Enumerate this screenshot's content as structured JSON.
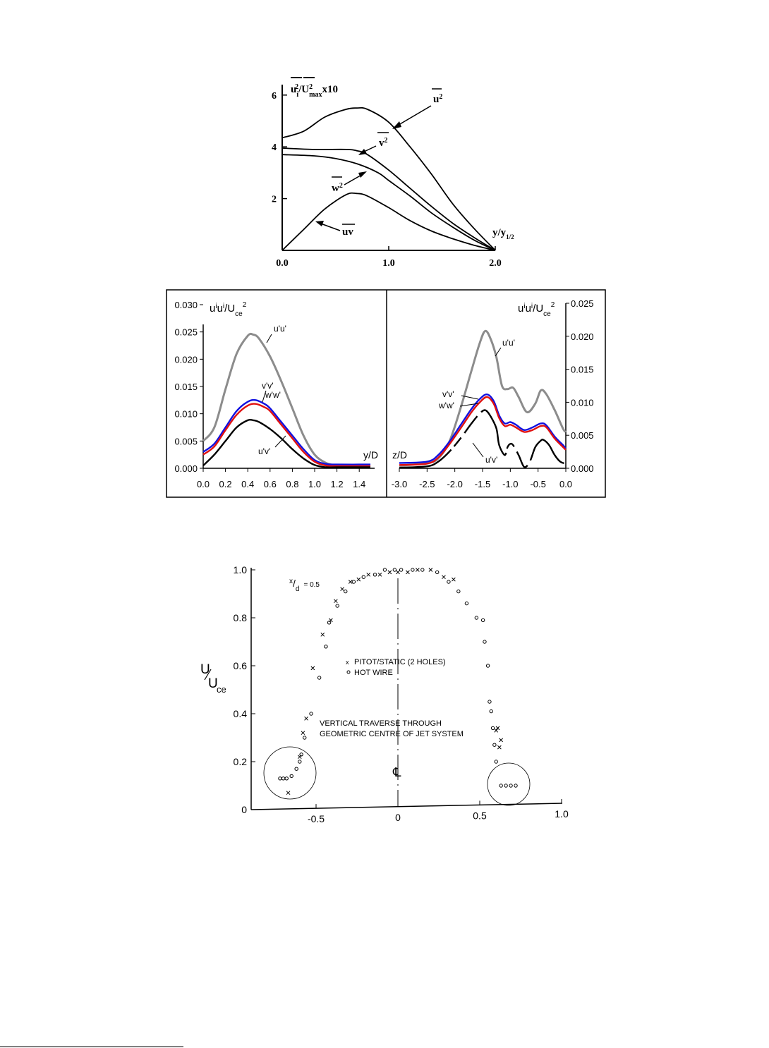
{
  "chart_data": [
    {
      "type": "line",
      "ylabel": "u_i²/U²_max x10",
      "ylabel_parts": {
        "main": "u",
        "sub1": "i",
        "sup1": "2",
        "mid": "/U",
        "sup2": "2",
        "sub2": "max",
        "tail": "x10"
      },
      "xlabel": "y/y½",
      "xlabel_parts": {
        "main": "y/y",
        "sub": "1/2"
      },
      "xlim": [
        0.0,
        2.0
      ],
      "ylim": [
        0,
        6.5
      ],
      "x_ticks": [
        "0.0",
        "1.0",
        "2.0"
      ],
      "y_ticks": [
        "2",
        "4",
        "6"
      ],
      "series": [
        {
          "name": "u²",
          "label_parts": {
            "main": "u",
            "sup": "2"
          },
          "x": [
            0.0,
            0.2,
            0.4,
            0.6,
            0.7,
            0.8,
            1.0,
            1.2,
            1.4,
            1.6,
            1.8,
            2.0
          ],
          "y": [
            4.35,
            4.6,
            5.15,
            5.45,
            5.5,
            5.45,
            4.95,
            4.0,
            2.95,
            1.8,
            0.85,
            0.0
          ]
        },
        {
          "name": "v²",
          "label_parts": {
            "main": "v",
            "sup": "2"
          },
          "x": [
            0.0,
            0.3,
            0.6,
            0.7,
            0.8,
            1.0,
            1.2,
            1.4,
            1.6,
            1.8,
            2.0
          ],
          "y": [
            3.95,
            3.9,
            3.9,
            3.85,
            3.7,
            3.1,
            2.4,
            1.7,
            1.05,
            0.5,
            0.0
          ]
        },
        {
          "name": "w²",
          "label_parts": {
            "main": "w",
            "sup": "2"
          },
          "x": [
            0.0,
            0.3,
            0.5,
            0.7,
            0.9,
            1.0,
            1.2,
            1.4,
            1.6,
            1.8,
            2.0
          ],
          "y": [
            3.7,
            3.65,
            3.55,
            3.35,
            3.0,
            2.7,
            2.1,
            1.45,
            0.9,
            0.4,
            0.0
          ]
        },
        {
          "name": "uv",
          "label_parts": {
            "main": "uv"
          },
          "x": [
            0.0,
            0.2,
            0.4,
            0.6,
            0.7,
            0.8,
            1.0,
            1.2,
            1.4,
            1.6,
            1.8,
            2.0
          ],
          "y": [
            0.0,
            0.8,
            1.6,
            2.15,
            2.2,
            2.1,
            1.65,
            1.15,
            0.75,
            0.45,
            0.2,
            0.0
          ]
        }
      ]
    },
    {
      "type": "line",
      "ylabel": "u'u'/U_ce²",
      "ylabel_parts": {
        "main": "u",
        "sup1": "i",
        "mid": "u",
        "sup2": "i",
        "tail": "/U",
        "sub": "ce",
        "sup3": "2"
      },
      "xlabel": "y/D",
      "xlim": [
        0.0,
        1.5
      ],
      "ylim": [
        0.0,
        0.03
      ],
      "x_ticks": [
        "0.0",
        "0.2",
        "0.4",
        "0.6",
        "0.8",
        "1.0",
        "1.2",
        "1.4"
      ],
      "y_ticks": [
        "0.000",
        "0.005",
        "0.010",
        "0.015",
        "0.020",
        "0.025",
        "0.030"
      ],
      "series": [
        {
          "name": "u'u'",
          "color": "#8c8c8c",
          "x": [
            0.0,
            0.1,
            0.2,
            0.3,
            0.4,
            0.45,
            0.5,
            0.6,
            0.7,
            0.8,
            0.9,
            1.0,
            1.1,
            1.2,
            1.3,
            1.5
          ],
          "y": [
            0.005,
            0.0075,
            0.0145,
            0.021,
            0.0243,
            0.0245,
            0.0238,
            0.0205,
            0.016,
            0.011,
            0.006,
            0.0025,
            0.001,
            0.0005,
            0.0004,
            0.0004
          ]
        },
        {
          "name": "v'v'",
          "color": "#1010e0",
          "x": [
            0.0,
            0.1,
            0.2,
            0.3,
            0.4,
            0.47,
            0.55,
            0.6,
            0.7,
            0.8,
            0.9,
            1.0,
            1.1,
            1.2,
            1.5
          ],
          "y": [
            0.003,
            0.0045,
            0.0075,
            0.0105,
            0.0122,
            0.0125,
            0.0118,
            0.011,
            0.0085,
            0.006,
            0.0035,
            0.0015,
            0.0008,
            0.0007,
            0.0007
          ]
        },
        {
          "name": "w'w'",
          "color": "#e01010",
          "x": [
            0.0,
            0.1,
            0.2,
            0.3,
            0.4,
            0.47,
            0.55,
            0.6,
            0.7,
            0.8,
            0.9,
            1.0,
            1.1,
            1.2,
            1.5
          ],
          "y": [
            0.0025,
            0.004,
            0.007,
            0.0098,
            0.0115,
            0.0118,
            0.0112,
            0.0105,
            0.008,
            0.0055,
            0.003,
            0.0012,
            0.0005,
            0.0004,
            0.0004
          ]
        },
        {
          "name": "u'v'",
          "color": "#000000",
          "x": [
            0.0,
            0.1,
            0.2,
            0.3,
            0.4,
            0.45,
            0.5,
            0.6,
            0.7,
            0.8,
            0.9,
            1.0,
            1.1,
            1.2,
            1.5
          ],
          "y": [
            0.0005,
            0.0025,
            0.005,
            0.0075,
            0.0088,
            0.0088,
            0.0085,
            0.0072,
            0.0055,
            0.0035,
            0.0018,
            0.0006,
            0.0002,
            0.0002,
            0.0002
          ]
        }
      ]
    },
    {
      "type": "line",
      "ylabel": "u'u'/U_ce²",
      "ylabel_parts": {
        "main": "u",
        "sup1": "i",
        "mid": "u",
        "sup2": "i",
        "tail": "/U",
        "sub": "ce",
        "sup3": "2"
      },
      "xlabel": "z/D",
      "xlim": [
        -3.0,
        0.0
      ],
      "ylim": [
        0.0,
        0.025
      ],
      "x_ticks": [
        "-3.0",
        "-2.5",
        "-2.0",
        "-1.5",
        "-1.0",
        "-0.5",
        "0.0"
      ],
      "y_ticks": [
        "0.000",
        "0.005",
        "0.010",
        "0.015",
        "0.020",
        "0.025"
      ],
      "series": [
        {
          "name": "u'u'",
          "color": "#8c8c8c",
          "x": [
            -3.0,
            -2.5,
            -2.3,
            -2.1,
            -1.9,
            -1.7,
            -1.55,
            -1.45,
            -1.35,
            -1.25,
            -1.15,
            -1.05,
            -0.95,
            -0.85,
            -0.7,
            -0.55,
            -0.45,
            -0.35,
            -0.2,
            -0.05,
            0.0
          ],
          "y": [
            0.0004,
            0.0008,
            0.0015,
            0.004,
            0.009,
            0.0148,
            0.019,
            0.0208,
            0.0195,
            0.0168,
            0.0125,
            0.012,
            0.0122,
            0.0108,
            0.0085,
            0.0098,
            0.0118,
            0.0112,
            0.0088,
            0.006,
            0.0055
          ]
        },
        {
          "name": "v'v'",
          "color": "#1010e0",
          "x": [
            -3.0,
            -2.5,
            -2.3,
            -2.1,
            -1.9,
            -1.7,
            -1.55,
            -1.42,
            -1.3,
            -1.2,
            -1.1,
            -1.0,
            -0.9,
            -0.75,
            -0.6,
            -0.45,
            -0.35,
            -0.2,
            -0.05,
            0.0
          ],
          "y": [
            0.0008,
            0.001,
            0.002,
            0.004,
            0.0065,
            0.009,
            0.0105,
            0.0112,
            0.0102,
            0.008,
            0.0068,
            0.007,
            0.0066,
            0.0058,
            0.0062,
            0.0068,
            0.0065,
            0.0048,
            0.0035,
            0.003
          ]
        },
        {
          "name": "w'w'",
          "color": "#e01010",
          "x": [
            -3.0,
            -2.5,
            -2.3,
            -2.1,
            -1.9,
            -1.7,
            -1.55,
            -1.42,
            -1.3,
            -1.2,
            -1.1,
            -1.0,
            -0.9,
            -0.75,
            -0.6,
            -0.45,
            -0.35,
            -0.2,
            -0.05,
            0.0
          ],
          "y": [
            0.0005,
            0.0007,
            0.0016,
            0.0036,
            0.006,
            0.0085,
            0.01,
            0.0108,
            0.0098,
            0.0076,
            0.0064,
            0.0066,
            0.0062,
            0.0055,
            0.0058,
            0.0064,
            0.0062,
            0.0045,
            0.0032,
            0.0028
          ]
        },
        {
          "name": "u'v'",
          "color": "#000000",
          "x": [
            -3.0,
            -2.5,
            -2.3,
            -2.1,
            -1.9,
            -1.7,
            -1.55,
            -1.45,
            -1.35,
            -1.25,
            -1.2,
            -1.1,
            -1.05,
            -1.0,
            -0.95,
            -0.85,
            -0.75,
            -0.65,
            -0.55,
            -0.45,
            -0.4,
            -0.3,
            -0.2,
            -0.1,
            0.0
          ],
          "y": [
            0.0001,
            0.0003,
            0.001,
            0.0025,
            0.0045,
            0.0068,
            0.0083,
            0.0088,
            0.0078,
            0.006,
            0.0035,
            0.002,
            0.0032,
            0.0037,
            0.0035,
            0.002,
            0.0002,
            0.001,
            0.0032,
            0.0042,
            0.0043,
            0.0035,
            0.002,
            0.001,
            0.0007
          ]
        }
      ],
      "y_axis_side": "right"
    },
    {
      "type": "scatter",
      "annotation": "x/d = 0.5",
      "annotation_parts": {
        "num": "x",
        "den": "d",
        "rest": "= 0.5"
      },
      "ylabel": "U/U_ce",
      "ylabel_parts": {
        "num": "U",
        "den": "U",
        "sub": "ce"
      },
      "note": "VERTICAL TRAVERSE THROUGH GEOMETRIC CENTRE OF JET SYSTEM",
      "note_lines": [
        "VERTICAL TRAVERSE THROUGH",
        "GEOMETRIC CENTRE OF JET SYSTEM"
      ],
      "centerline_symbol": "℄",
      "xlim": [
        -0.86,
        1.0
      ],
      "ylim": [
        0.0,
        1.0
      ],
      "x_ticks": [
        "-0.5",
        "0",
        "0.5",
        "1.0"
      ],
      "y_ticks": [
        "0",
        "0.2",
        "0.4",
        "0.6",
        "0.8",
        "1.0"
      ],
      "series": [
        {
          "name": "PITOT/STATIC (2 HOLES)",
          "marker": "x",
          "x": [
            -0.67,
            -0.6,
            -0.58,
            -0.56,
            -0.52,
            -0.46,
            -0.41,
            -0.38,
            -0.34,
            -0.29,
            -0.24,
            -0.18,
            -0.11,
            -0.05,
            0.0,
            0.06,
            0.12,
            0.2,
            0.28,
            0.34,
            0.62,
            0.6,
            0.61,
            0.63
          ],
          "y": [
            0.07,
            0.22,
            0.32,
            0.38,
            0.59,
            0.73,
            0.79,
            0.87,
            0.92,
            0.95,
            0.96,
            0.98,
            0.98,
            0.99,
            0.99,
            0.99,
            1.0,
            1.0,
            0.97,
            0.96,
            0.26,
            0.33,
            0.34,
            0.29
          ]
        },
        {
          "name": "HOT WIRE",
          "marker": "o",
          "x": [
            -0.72,
            -0.7,
            -0.68,
            -0.65,
            -0.62,
            -0.6,
            -0.59,
            -0.57,
            -0.53,
            -0.48,
            -0.44,
            -0.42,
            -0.37,
            -0.32,
            -0.27,
            -0.21,
            -0.14,
            -0.08,
            -0.02,
            0.02,
            0.09,
            0.15,
            0.24,
            0.31,
            0.37,
            0.42,
            0.48,
            0.52,
            0.53,
            0.55,
            0.56,
            0.57,
            0.58,
            0.59,
            0.6,
            0.63,
            0.66,
            0.69,
            0.72
          ],
          "y": [
            0.13,
            0.13,
            0.13,
            0.14,
            0.17,
            0.2,
            0.23,
            0.3,
            0.4,
            0.55,
            0.68,
            0.78,
            0.85,
            0.91,
            0.95,
            0.97,
            0.98,
            1.0,
            1.0,
            1.0,
            1.0,
            1.0,
            0.99,
            0.95,
            0.91,
            0.86,
            0.8,
            0.79,
            0.7,
            0.6,
            0.45,
            0.41,
            0.34,
            0.27,
            0.2,
            0.1,
            0.1,
            0.1,
            0.1
          ]
        }
      ],
      "legend": "top-center"
    }
  ]
}
